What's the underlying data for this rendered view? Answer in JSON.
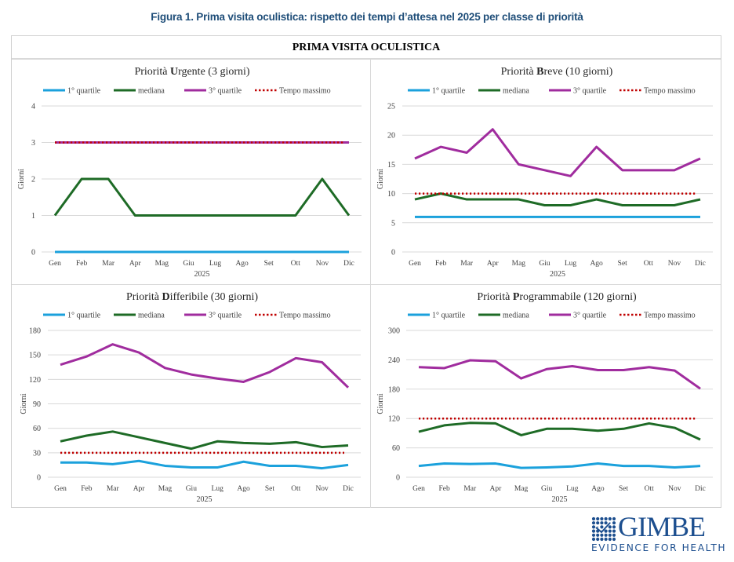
{
  "figure_title": "Figura 1. Prima visita oculistica: rispetto dei tempi d’attesa nel 2025 per classe di priorità",
  "table_header": "PRIMA VISITA OCULISTICA",
  "logo": {
    "name": "GIMBE",
    "tagline": "EVIDENCE FOR HEALTH",
    "icon": "checkmark-dot-grid-icon",
    "color": "#1d4f8f"
  },
  "colors": {
    "q1": "#1ba1dc",
    "median": "#1e6b26",
    "q3": "#a02c9e",
    "max": "#c00000",
    "grid": "#d9d9d9",
    "text": "#404040"
  },
  "chart_data": [
    {
      "id": "urgente",
      "type": "line",
      "title_prefix": "Priorità ",
      "title_bold": "U",
      "title_rest": "rgente (3 giorni)",
      "title": "Priorità Urgente (3 giorni)",
      "xlabel": "2025",
      "ylabel": "Giorni",
      "ylim": [
        0,
        4
      ],
      "yticks": [
        0,
        1,
        2,
        3,
        4
      ],
      "categories": [
        "Gen",
        "Feb",
        "Mar",
        "Apr",
        "Mag",
        "Giu",
        "Lug",
        "Ago",
        "Set",
        "Ott",
        "Nov",
        "Dic"
      ],
      "legend": [
        "1° quartile",
        "mediana",
        "3° quartile",
        "Tempo massimo"
      ],
      "legend_position": "top",
      "grid": true,
      "series": [
        {
          "name": "1° quartile",
          "key": "q1",
          "values": [
            0,
            0,
            0,
            0,
            0,
            0,
            0,
            0,
            0,
            0,
            0,
            0
          ]
        },
        {
          "name": "mediana",
          "key": "median",
          "values": [
            1,
            2,
            2,
            1,
            1,
            1,
            1,
            1,
            1,
            1,
            2,
            1
          ]
        },
        {
          "name": "3° quartile",
          "key": "q3",
          "values": [
            3,
            3,
            3,
            3,
            3,
            3,
            3,
            3,
            3,
            3,
            3,
            3
          ]
        },
        {
          "name": "Tempo massimo",
          "key": "max",
          "values": [
            3,
            3,
            3,
            3,
            3,
            3,
            3,
            3,
            3,
            3,
            3,
            3
          ]
        }
      ]
    },
    {
      "id": "breve",
      "type": "line",
      "title_prefix": "Priorità ",
      "title_bold": "B",
      "title_rest": "reve (10 giorni)",
      "title": "Priorità Breve (10 giorni)",
      "xlabel": "2025",
      "ylabel": "Giorni",
      "ylim": [
        0,
        25
      ],
      "yticks": [
        0,
        5,
        10,
        15,
        20,
        25
      ],
      "categories": [
        "Gen",
        "Feb",
        "Mar",
        "Apr",
        "Mag",
        "Giu",
        "Lug",
        "Ago",
        "Set",
        "Ott",
        "Nov",
        "Dic"
      ],
      "legend": [
        "1° quartile",
        "mediana",
        "3° quartile",
        "Tempo massimo"
      ],
      "legend_position": "top",
      "grid": true,
      "series": [
        {
          "name": "1° quartile",
          "key": "q1",
          "values": [
            6,
            6,
            6,
            6,
            6,
            6,
            6,
            6,
            6,
            6,
            6,
            6
          ]
        },
        {
          "name": "mediana",
          "key": "median",
          "values": [
            9,
            10,
            9,
            9,
            9,
            8,
            8,
            9,
            8,
            8,
            8,
            9
          ]
        },
        {
          "name": "3° quartile",
          "key": "q3",
          "values": [
            16,
            18,
            17,
            21,
            15,
            14,
            13,
            18,
            14,
            14,
            14,
            16
          ]
        },
        {
          "name": "Tempo massimo",
          "key": "max",
          "values": [
            10,
            10,
            10,
            10,
            10,
            10,
            10,
            10,
            10,
            10,
            10,
            10
          ]
        }
      ]
    },
    {
      "id": "differibile",
      "type": "line",
      "title_prefix": "Priorità ",
      "title_bold": "D",
      "title_rest": "ifferibile (30 giorni)",
      "title": "Priorità Differibile (30 giorni)",
      "xlabel": "2025",
      "ylabel": "Giorni",
      "ylim": [
        0,
        180
      ],
      "yticks": [
        0,
        30,
        60,
        90,
        120,
        150,
        180
      ],
      "categories": [
        "Gen",
        "Feb",
        "Mar",
        "Apr",
        "Mag",
        "Giu",
        "Lug",
        "Ago",
        "Set",
        "Ott",
        "Nov",
        "Dic"
      ],
      "legend": [
        "1° quartile",
        "mediana",
        "3° quartile",
        "Tempo massimo"
      ],
      "legend_position": "top",
      "grid": true,
      "series": [
        {
          "name": "1° quartile",
          "key": "q1",
          "values": [
            18,
            18,
            16,
            20,
            14,
            12,
            12,
            19,
            14,
            14,
            11,
            15
          ]
        },
        {
          "name": "mediana",
          "key": "median",
          "values": [
            44,
            51,
            56,
            49,
            42,
            35,
            44,
            42,
            41,
            43,
            37,
            39
          ]
        },
        {
          "name": "3° quartile",
          "key": "q3",
          "values": [
            138,
            148,
            163,
            153,
            134,
            126,
            121,
            117,
            129,
            146,
            141,
            110
          ]
        },
        {
          "name": "Tempo massimo",
          "key": "max",
          "values": [
            30,
            30,
            30,
            30,
            30,
            30,
            30,
            30,
            30,
            30,
            30,
            30
          ]
        }
      ]
    },
    {
      "id": "programmabile",
      "type": "line",
      "title_prefix": "Priorità ",
      "title_bold": "P",
      "title_rest": "rogrammabile (120 giorni)",
      "title": "Priorità Programmabile (120 giorni)",
      "xlabel": "2025",
      "ylabel": "Giorni",
      "ylim": [
        0,
        300
      ],
      "yticks": [
        0,
        60,
        120,
        180,
        240,
        300
      ],
      "categories": [
        "Gen",
        "Feb",
        "Mar",
        "Apr",
        "Mag",
        "Giu",
        "Lug",
        "Ago",
        "Set",
        "Ott",
        "Nov",
        "Dic"
      ],
      "legend": [
        "1° quartile",
        "mediana",
        "3° quartile",
        "Tempo massimo"
      ],
      "legend_position": "top",
      "grid": true,
      "series": [
        {
          "name": "1° quartile",
          "key": "q1",
          "values": [
            23,
            28,
            27,
            28,
            19,
            20,
            22,
            28,
            23,
            23,
            20,
            23
          ]
        },
        {
          "name": "mediana",
          "key": "median",
          "values": [
            93,
            106,
            111,
            110,
            86,
            99,
            99,
            95,
            99,
            110,
            101,
            77
          ]
        },
        {
          "name": "3° quartile",
          "key": "q3",
          "values": [
            225,
            223,
            239,
            237,
            202,
            221,
            227,
            219,
            219,
            225,
            218,
            181
          ]
        },
        {
          "name": "Tempo massimo",
          "key": "max",
          "values": [
            120,
            120,
            120,
            120,
            120,
            120,
            120,
            120,
            120,
            120,
            120,
            120
          ]
        }
      ]
    }
  ]
}
